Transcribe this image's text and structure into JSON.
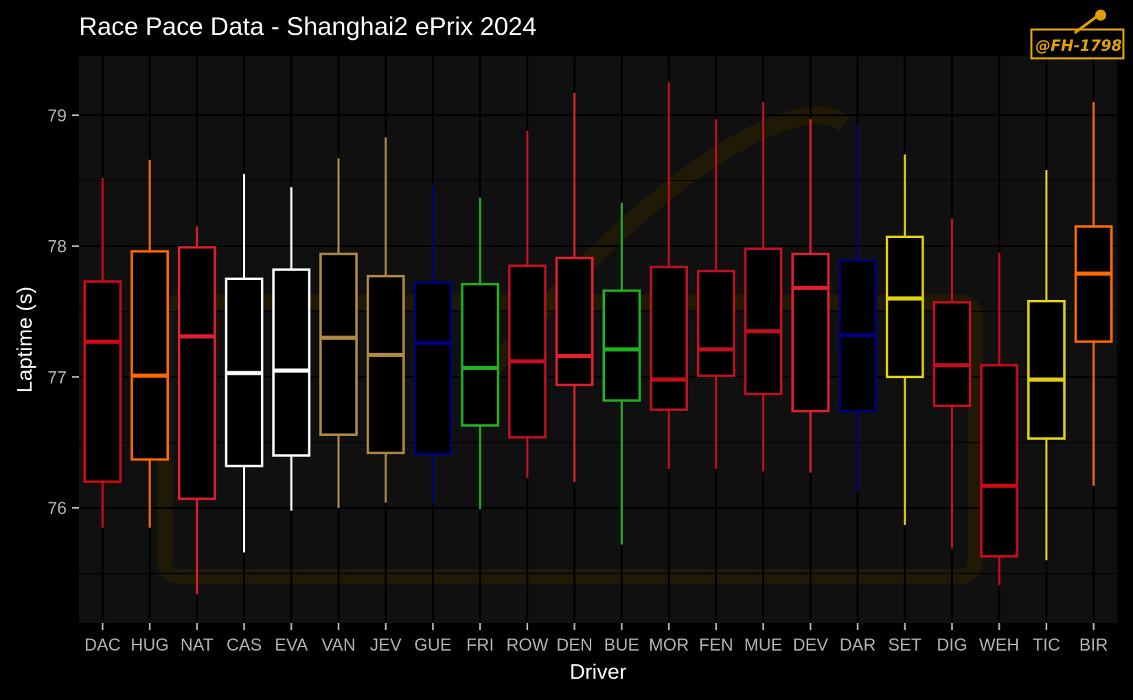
{
  "chart_data": {
    "type": "box",
    "title": "Race Pace Data - Shanghai2 ePrix 2024",
    "xlabel": "Driver",
    "ylabel": "Laptime (s)",
    "ylim": [
      75.12,
      79.45
    ],
    "yticks": [
      76,
      77,
      78,
      79
    ],
    "grid": true,
    "legend": "none",
    "watermark": "@FH-1798",
    "background_color": "#000000",
    "panel_color": "#101010",
    "grid_color": "#000000",
    "categories": [
      "DAC",
      "HUG",
      "NAT",
      "CAS",
      "EVA",
      "VAN",
      "JEV",
      "GUE",
      "FRI",
      "ROW",
      "DEN",
      "BUE",
      "MOR",
      "FEN",
      "MUE",
      "DEV",
      "DAR",
      "SET",
      "DIG",
      "WEH",
      "TIC",
      "BIR"
    ],
    "series": [
      {
        "category": "DAC",
        "color": "#cc0a16",
        "min": 75.85,
        "q1": 76.2,
        "median": 77.27,
        "q3": 77.73,
        "max": 78.52
      },
      {
        "category": "HUG",
        "color": "#ff6a00",
        "min": 75.85,
        "q1": 76.37,
        "median": 77.01,
        "q3": 77.96,
        "max": 78.66
      },
      {
        "category": "NAT",
        "color": "#e02030",
        "min": 75.34,
        "q1": 76.07,
        "median": 77.31,
        "q3": 77.99,
        "max": 78.15
      },
      {
        "category": "CAS",
        "color": "#ffffff",
        "min": 75.66,
        "q1": 76.32,
        "median": 77.03,
        "q3": 77.75,
        "max": 78.55
      },
      {
        "category": "EVA",
        "color": "#ffffff",
        "min": 75.98,
        "q1": 76.4,
        "median": 77.05,
        "q3": 77.82,
        "max": 78.45
      },
      {
        "category": "VAN",
        "color": "#b08a45",
        "min": 76.0,
        "q1": 76.56,
        "median": 77.3,
        "q3": 77.94,
        "max": 78.67
      },
      {
        "category": "JEV",
        "color": "#b08a45",
        "min": 76.04,
        "q1": 76.42,
        "median": 77.17,
        "q3": 77.77,
        "max": 78.83
      },
      {
        "category": "GUE",
        "color": "#00007a",
        "min": 76.03,
        "q1": 76.41,
        "median": 77.26,
        "q3": 77.72,
        "max": 78.47
      },
      {
        "category": "FRI",
        "color": "#20b020",
        "min": 75.99,
        "q1": 76.63,
        "median": 77.07,
        "q3": 77.71,
        "max": 78.37
      },
      {
        "category": "ROW",
        "color": "#c01020",
        "min": 76.23,
        "q1": 76.54,
        "median": 77.12,
        "q3": 77.85,
        "max": 78.88
      },
      {
        "category": "DEN",
        "color": "#e02030",
        "min": 76.2,
        "q1": 76.94,
        "median": 77.16,
        "q3": 77.91,
        "max": 79.17
      },
      {
        "category": "BUE",
        "color": "#20b020",
        "min": 75.72,
        "q1": 76.82,
        "median": 77.21,
        "q3": 77.66,
        "max": 78.33
      },
      {
        "category": "MOR",
        "color": "#c01020",
        "min": 76.3,
        "q1": 76.75,
        "median": 76.98,
        "q3": 77.84,
        "max": 79.25
      },
      {
        "category": "FEN",
        "color": "#c01020",
        "min": 76.3,
        "q1": 77.01,
        "median": 77.21,
        "q3": 77.81,
        "max": 78.97
      },
      {
        "category": "MUE",
        "color": "#c01020",
        "min": 76.28,
        "q1": 76.87,
        "median": 77.35,
        "q3": 77.98,
        "max": 79.1
      },
      {
        "category": "DEV",
        "color": "#e02030",
        "min": 76.27,
        "q1": 76.74,
        "median": 77.68,
        "q3": 77.94,
        "max": 78.97
      },
      {
        "category": "DAR",
        "color": "#00007a",
        "min": 76.12,
        "q1": 76.74,
        "median": 77.32,
        "q3": 77.89,
        "max": 78.92
      },
      {
        "category": "SET",
        "color": "#e0d010",
        "min": 75.87,
        "q1": 77.0,
        "median": 77.6,
        "q3": 78.07,
        "max": 78.7
      },
      {
        "category": "DIG",
        "color": "#c01020",
        "min": 75.69,
        "q1": 76.78,
        "median": 77.09,
        "q3": 77.57,
        "max": 78.21
      },
      {
        "category": "WEH",
        "color": "#cc0a16",
        "min": 75.41,
        "q1": 75.63,
        "median": 76.17,
        "q3": 77.09,
        "max": 77.95
      },
      {
        "category": "TIC",
        "color": "#e0d010",
        "min": 75.6,
        "q1": 76.53,
        "median": 76.98,
        "q3": 77.58,
        "max": 78.58
      },
      {
        "category": "BIR",
        "color": "#ff6a00",
        "min": 76.17,
        "q1": 77.27,
        "median": 77.79,
        "q3": 78.15,
        "max": 79.1
      }
    ]
  }
}
